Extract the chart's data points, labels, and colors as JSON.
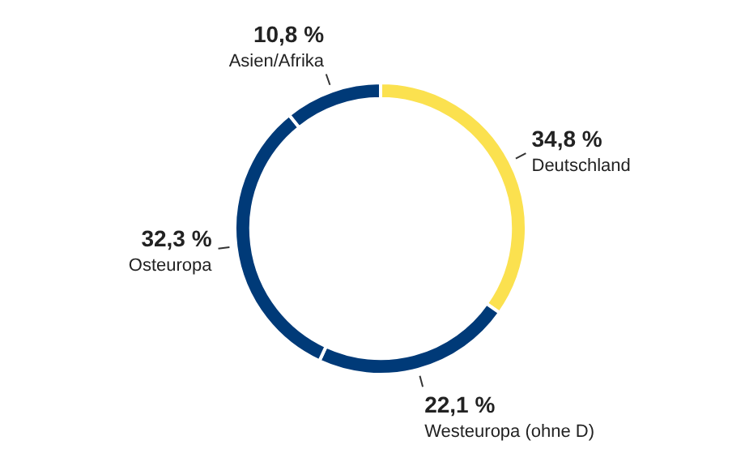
{
  "chart_data": {
    "type": "donut",
    "categories": [
      "Deutschland",
      "Westeuropa (ohne D)",
      "Osteuropa",
      "Asien/Afrika"
    ],
    "values": [
      34.8,
      22.1,
      32.3,
      10.8
    ],
    "value_labels": [
      "34,8 %",
      "22,1 %",
      "32,3 %",
      "10,8 %"
    ],
    "colors": [
      "#fbe14f",
      "#003a78",
      "#003a78",
      "#003a78"
    ],
    "legend": false
  }
}
